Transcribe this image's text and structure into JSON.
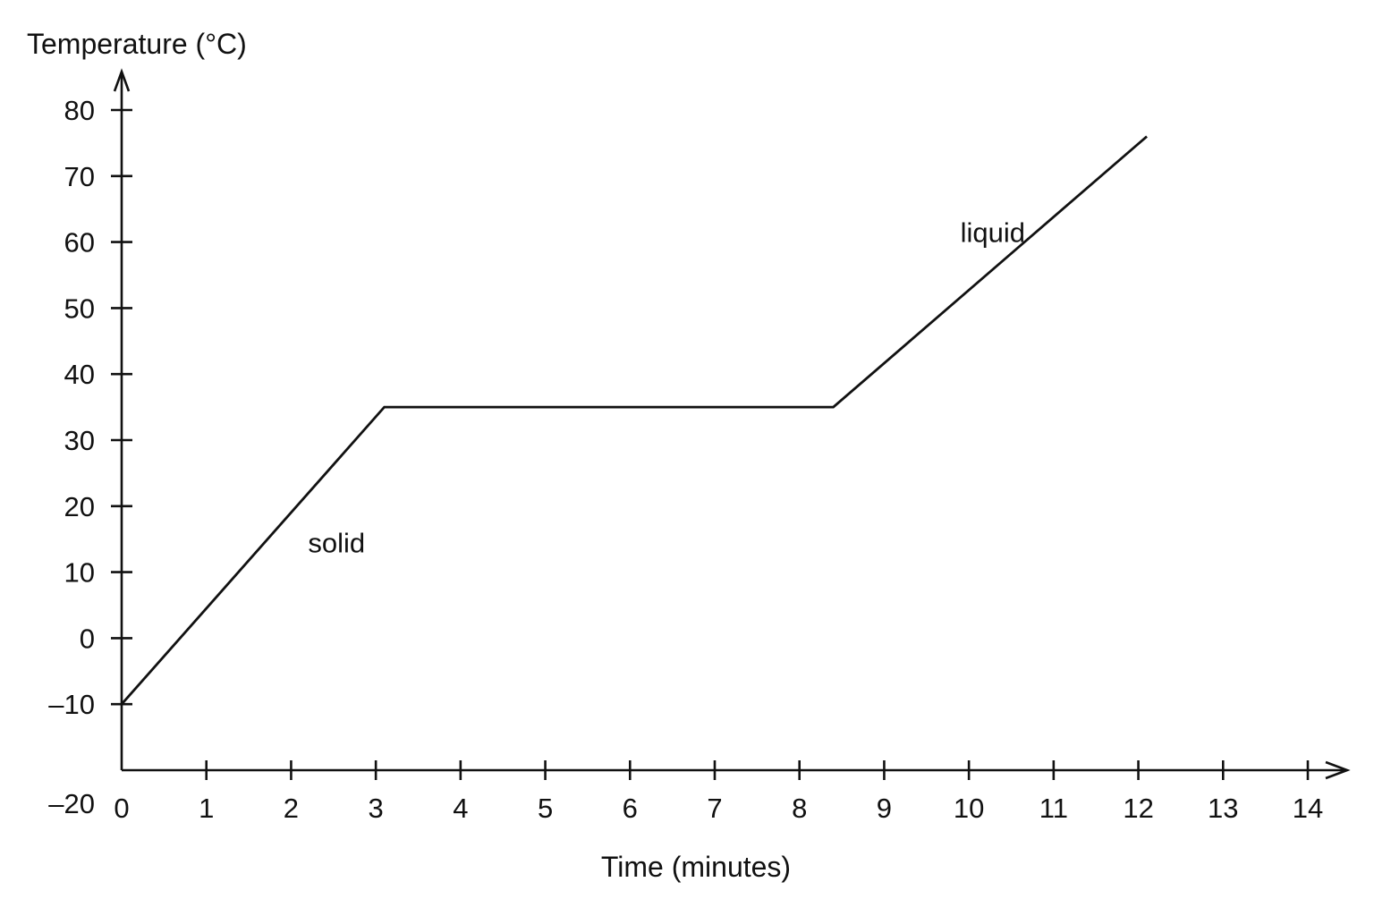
{
  "chart_data": {
    "type": "line",
    "ylabel": "Temperature (°C)",
    "xlabel": "Time (minutes)",
    "x_ticks": [
      "0",
      "1",
      "2",
      "3",
      "4",
      "5",
      "6",
      "7",
      "8",
      "9",
      "10",
      "11",
      "12",
      "13",
      "14"
    ],
    "y_ticks": [
      "–20",
      "–10",
      "0",
      "10",
      "20",
      "30",
      "40",
      "50",
      "60",
      "70",
      "80"
    ],
    "xlim": [
      0,
      14
    ],
    "ylim": [
      -20,
      80
    ],
    "grid": false,
    "series": [
      {
        "x": [
          0,
          3.1,
          8.4,
          12.1
        ],
        "y": [
          -10,
          35,
          35,
          76
        ]
      }
    ],
    "annotations": [
      {
        "text": "solid",
        "x": 2.2,
        "y": 13
      },
      {
        "text": "liquid",
        "x": 9.9,
        "y": 60
      }
    ]
  }
}
